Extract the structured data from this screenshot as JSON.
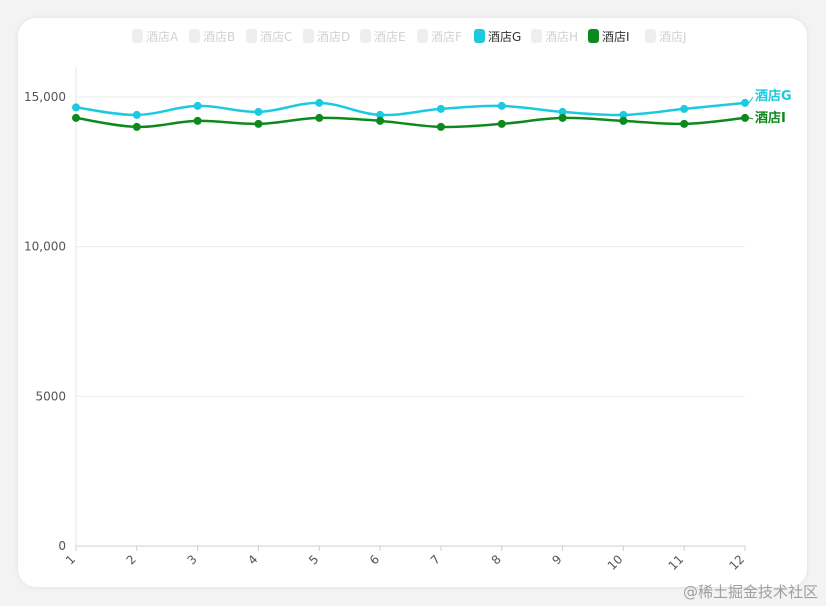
{
  "chart_data": {
    "type": "line",
    "x": [
      "1",
      "2",
      "3",
      "4",
      "5",
      "6",
      "7",
      "8",
      "9",
      "10",
      "11",
      "12"
    ],
    "ylim": [
      0,
      16000
    ],
    "yticks": [
      0,
      5000,
      10000,
      15000
    ],
    "ytick_labels": [
      "0",
      "5000",
      "10,000",
      "15,000"
    ],
    "grid": true,
    "legend_position": "top",
    "legend": [
      {
        "name": "酒店A",
        "active": false
      },
      {
        "name": "酒店B",
        "active": false
      },
      {
        "name": "酒店C",
        "active": false
      },
      {
        "name": "酒店D",
        "active": false
      },
      {
        "name": "酒店E",
        "active": false
      },
      {
        "name": "酒店F",
        "active": false
      },
      {
        "name": "酒店G",
        "active": true,
        "color": "#1ccadf"
      },
      {
        "name": "酒店H",
        "active": false
      },
      {
        "name": "酒店I",
        "active": true,
        "color": "#0e8a1c"
      },
      {
        "name": "酒店J",
        "active": false
      }
    ],
    "series": [
      {
        "name": "酒店G",
        "color": "#1ccadf",
        "values": [
          14650,
          14400,
          14700,
          14500,
          14800,
          14400,
          14600,
          14700,
          14500,
          14400,
          14600,
          14800
        ]
      },
      {
        "name": "酒店I",
        "color": "#0e8a1c",
        "values": [
          14300,
          14000,
          14200,
          14100,
          14300,
          14200,
          14000,
          14100,
          14300,
          14200,
          14100,
          14300
        ]
      }
    ],
    "end_labels": [
      "酒店G",
      "酒店I"
    ]
  },
  "watermark": "@稀土掘金技术社区"
}
